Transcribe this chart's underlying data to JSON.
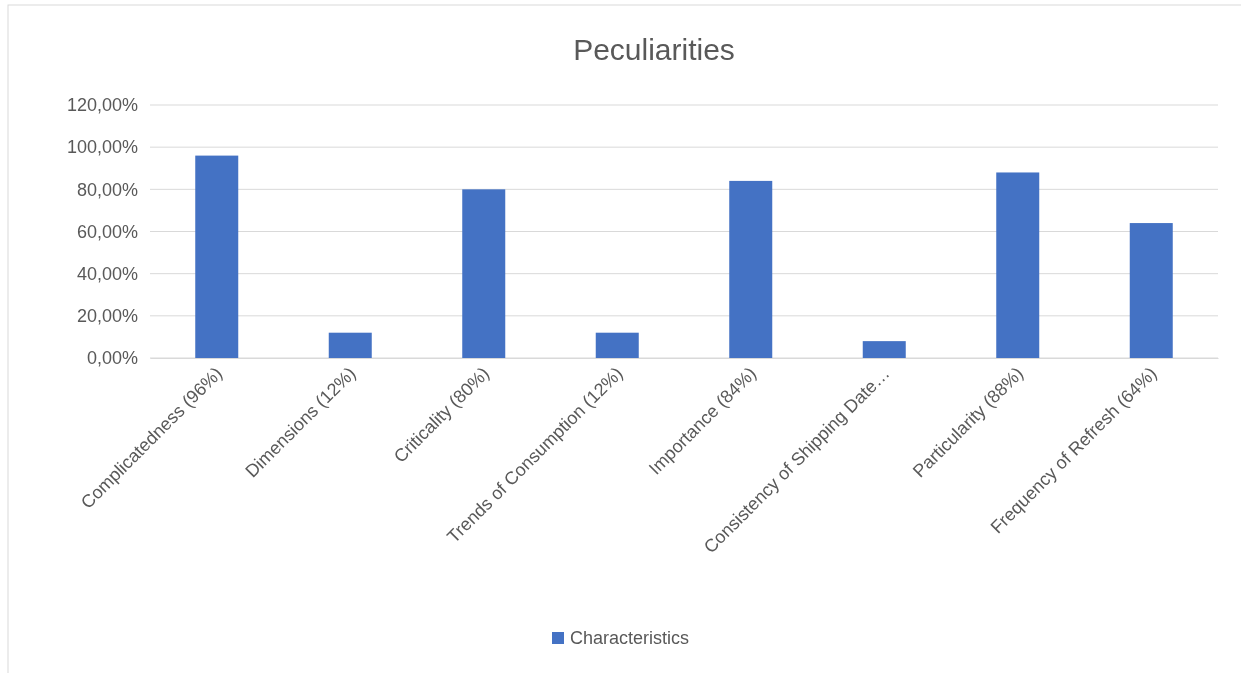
{
  "chart_data": {
    "type": "bar",
    "title": "Peculiarities",
    "categories": [
      "Complicatedness (96%)",
      "Dimensions (12%)",
      "Criticality (80%)",
      "Trends of Consumption (12%)",
      "Importance (84%)",
      "Consistency of Shipping Date…",
      "Particularity (88%)",
      "Frequency of Refresh (64%)"
    ],
    "series": [
      {
        "name": "Characteristics",
        "color": "#4472c4",
        "values": [
          96,
          12,
          80,
          12,
          84,
          8,
          88,
          64
        ]
      }
    ],
    "ylim": [
      0,
      120
    ],
    "yticks": [
      {
        "value": 0,
        "label": "0,00%"
      },
      {
        "value": 20,
        "label": "20,00%"
      },
      {
        "value": 40,
        "label": "40,00%"
      },
      {
        "value": 60,
        "label": "60,00%"
      },
      {
        "value": 80,
        "label": "80,00%"
      },
      {
        "value": 100,
        "label": "100,00%"
      },
      {
        "value": 120,
        "label": "120,00%"
      }
    ],
    "grid": "y",
    "legend": "bottom"
  }
}
